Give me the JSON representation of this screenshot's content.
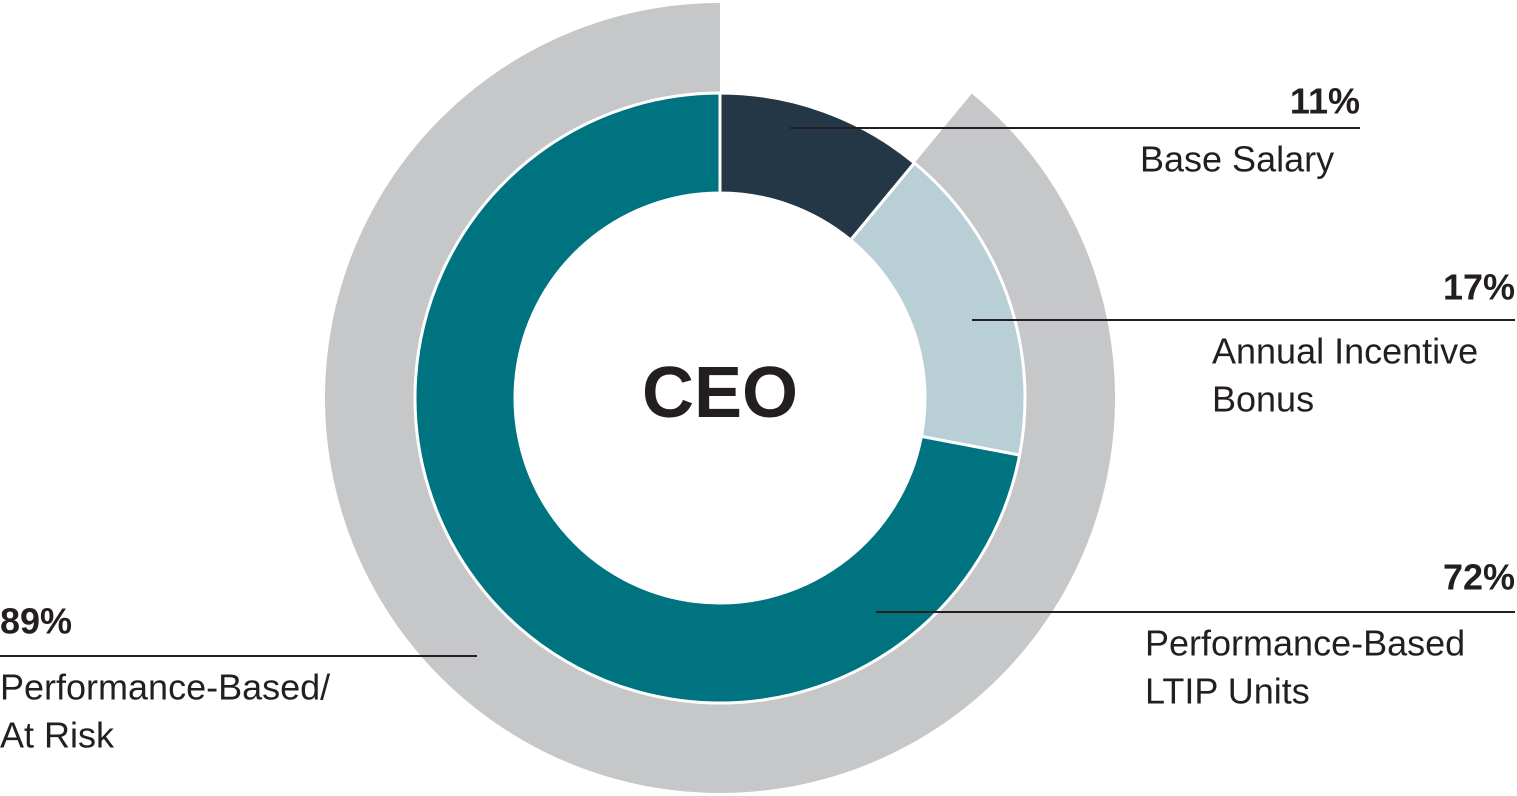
{
  "chart_data": {
    "type": "donut",
    "center_label": "CEO",
    "categories": [
      [
        "Base Salary"
      ],
      [
        "Annual Incentive",
        "Bonus"
      ],
      [
        "Performance-Based",
        "LTIP Units"
      ]
    ],
    "values": [
      11,
      17,
      72
    ],
    "value_labels": [
      "11%",
      "17%",
      "72%"
    ],
    "colors": [
      "#243746",
      "#b9cfd6",
      "#007381"
    ],
    "outer": {
      "label": [
        "Performance-Based/",
        "At Risk"
      ],
      "value": 89,
      "value_label": "89%",
      "color": "#c6c7c8"
    }
  }
}
